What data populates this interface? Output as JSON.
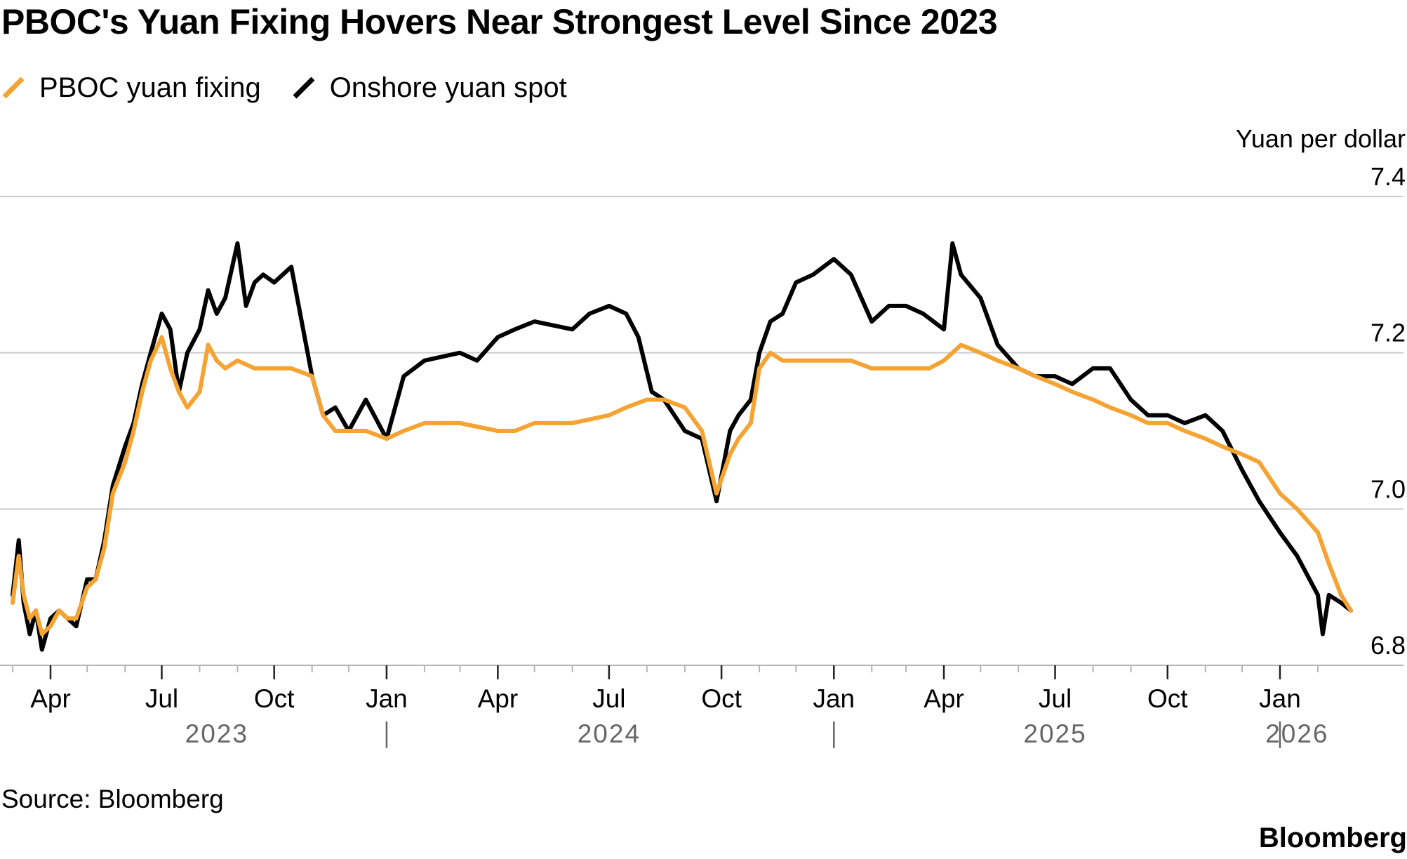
{
  "title": "PBOC's Yuan Fixing Hovers Near Strongest Level Since 2023",
  "source": "Source: Bloomberg",
  "brand": "Bloomberg",
  "colors": {
    "fixing": "#f5a332",
    "spot": "#000000",
    "grid": "#cccccc"
  },
  "chart_data": {
    "type": "line",
    "title": "PBOC's Yuan Fixing Hovers Near Strongest Level Since 2023",
    "ylabel": "Yuan per dollar",
    "ylim": [
      6.8,
      7.4
    ],
    "yticks": [
      "6.8",
      "7.0",
      "7.2",
      "7.4"
    ],
    "y_axis_side": "right",
    "grid": true,
    "legend_position": "top-left",
    "x_range": [
      "2023-03-01",
      "2026-02-28"
    ],
    "month_ticks": [
      {
        "date": "2023-04-01",
        "label": "Apr"
      },
      {
        "date": "2023-07-01",
        "label": "Jul"
      },
      {
        "date": "2023-10-01",
        "label": "Oct"
      },
      {
        "date": "2024-01-01",
        "label": "Jan"
      },
      {
        "date": "2024-04-01",
        "label": "Apr"
      },
      {
        "date": "2024-07-01",
        "label": "Jul"
      },
      {
        "date": "2024-10-01",
        "label": "Oct"
      },
      {
        "date": "2025-01-01",
        "label": "Jan"
      },
      {
        "date": "2025-04-01",
        "label": "Apr"
      },
      {
        "date": "2025-07-01",
        "label": "Jul"
      },
      {
        "date": "2025-10-01",
        "label": "Oct"
      },
      {
        "date": "2026-01-01",
        "label": "Jan"
      }
    ],
    "year_labels": [
      {
        "date": "2023-08-15",
        "label": "2023"
      },
      {
        "date": "2024-07-01",
        "label": "2024"
      },
      {
        "date": "2025-07-01",
        "label": "2025"
      },
      {
        "date": "2026-01-15",
        "label": "2026"
      }
    ],
    "year_separators": [
      "2024-01-01",
      "2025-01-01",
      "2026-01-01"
    ],
    "series": [
      {
        "name": "PBOC yuan fixing",
        "x": [
          "2023-03-01",
          "2023-03-06",
          "2023-03-10",
          "2023-03-15",
          "2023-03-20",
          "2023-03-25",
          "2023-04-01",
          "2023-04-08",
          "2023-04-15",
          "2023-04-22",
          "2023-05-01",
          "2023-05-08",
          "2023-05-15",
          "2023-05-22",
          "2023-06-01",
          "2023-06-08",
          "2023-06-15",
          "2023-06-22",
          "2023-07-01",
          "2023-07-08",
          "2023-07-15",
          "2023-07-22",
          "2023-08-01",
          "2023-08-08",
          "2023-08-15",
          "2023-08-22",
          "2023-09-01",
          "2023-09-15",
          "2023-10-01",
          "2023-10-15",
          "2023-11-01",
          "2023-11-10",
          "2023-11-20",
          "2023-12-01",
          "2023-12-15",
          "2024-01-01",
          "2024-01-15",
          "2024-02-01",
          "2024-03-01",
          "2024-04-01",
          "2024-04-15",
          "2024-05-01",
          "2024-06-01",
          "2024-07-01",
          "2024-07-15",
          "2024-08-01",
          "2024-08-15",
          "2024-09-01",
          "2024-09-15",
          "2024-09-27",
          "2024-10-08",
          "2024-10-15",
          "2024-10-25",
          "2024-11-01",
          "2024-11-10",
          "2024-11-20",
          "2024-12-01",
          "2024-12-15",
          "2025-01-01",
          "2025-01-15",
          "2025-02-01",
          "2025-03-01",
          "2025-03-20",
          "2025-04-01",
          "2025-04-15",
          "2025-05-01",
          "2025-05-15",
          "2025-06-01",
          "2025-06-15",
          "2025-07-01",
          "2025-07-15",
          "2025-08-01",
          "2025-08-15",
          "2025-09-01",
          "2025-09-15",
          "2025-10-01",
          "2025-10-15",
          "2025-11-01",
          "2025-11-15",
          "2025-12-01",
          "2025-12-15",
          "2026-01-01",
          "2026-01-15",
          "2026-02-01",
          "2026-02-10",
          "2026-02-20",
          "2026-02-28"
        ],
        "values": [
          6.88,
          6.94,
          6.89,
          6.86,
          6.87,
          6.84,
          6.85,
          6.87,
          6.86,
          6.86,
          6.9,
          6.91,
          6.95,
          7.02,
          7.06,
          7.1,
          7.15,
          7.19,
          7.22,
          7.18,
          7.15,
          7.13,
          7.15,
          7.21,
          7.19,
          7.18,
          7.19,
          7.18,
          7.18,
          7.18,
          7.17,
          7.12,
          7.1,
          7.1,
          7.1,
          7.09,
          7.1,
          7.11,
          7.11,
          7.1,
          7.1,
          7.11,
          7.11,
          7.12,
          7.13,
          7.14,
          7.14,
          7.13,
          7.1,
          7.02,
          7.07,
          7.09,
          7.11,
          7.18,
          7.2,
          7.19,
          7.19,
          7.19,
          7.19,
          7.19,
          7.18,
          7.18,
          7.18,
          7.19,
          7.21,
          7.2,
          7.19,
          7.18,
          7.17,
          7.16,
          7.15,
          7.14,
          7.13,
          7.12,
          7.11,
          7.11,
          7.1,
          7.09,
          7.08,
          7.07,
          7.06,
          7.02,
          7.0,
          6.97,
          6.93,
          6.89,
          6.87
        ]
      },
      {
        "name": "Onshore yuan spot",
        "x": [
          "2023-03-01",
          "2023-03-06",
          "2023-03-10",
          "2023-03-15",
          "2023-03-20",
          "2023-03-25",
          "2023-04-01",
          "2023-04-08",
          "2023-04-15",
          "2023-04-22",
          "2023-05-01",
          "2023-05-08",
          "2023-05-15",
          "2023-05-22",
          "2023-06-01",
          "2023-06-08",
          "2023-06-15",
          "2023-06-22",
          "2023-07-01",
          "2023-07-08",
          "2023-07-15",
          "2023-07-22",
          "2023-08-01",
          "2023-08-08",
          "2023-08-15",
          "2023-08-22",
          "2023-09-01",
          "2023-09-08",
          "2023-09-15",
          "2023-09-22",
          "2023-10-01",
          "2023-10-15",
          "2023-11-01",
          "2023-11-10",
          "2023-11-20",
          "2023-12-01",
          "2023-12-15",
          "2024-01-01",
          "2024-01-15",
          "2024-02-01",
          "2024-03-01",
          "2024-03-15",
          "2024-04-01",
          "2024-04-15",
          "2024-05-01",
          "2024-06-01",
          "2024-06-15",
          "2024-07-01",
          "2024-07-15",
          "2024-07-25",
          "2024-08-05",
          "2024-08-15",
          "2024-09-01",
          "2024-09-15",
          "2024-09-27",
          "2024-10-08",
          "2024-10-15",
          "2024-10-25",
          "2024-11-01",
          "2024-11-10",
          "2024-11-20",
          "2024-12-01",
          "2024-12-15",
          "2025-01-01",
          "2025-01-15",
          "2025-02-01",
          "2025-02-15",
          "2025-03-01",
          "2025-03-15",
          "2025-04-01",
          "2025-04-08",
          "2025-04-15",
          "2025-05-01",
          "2025-05-15",
          "2025-06-01",
          "2025-06-15",
          "2025-07-01",
          "2025-07-15",
          "2025-08-01",
          "2025-08-15",
          "2025-09-01",
          "2025-09-15",
          "2025-10-01",
          "2025-10-15",
          "2025-11-01",
          "2025-11-15",
          "2025-12-01",
          "2025-12-15",
          "2026-01-01",
          "2026-01-15",
          "2026-02-01",
          "2026-02-05",
          "2026-02-10",
          "2026-02-20",
          "2026-02-28"
        ],
        "values": [
          6.89,
          6.96,
          6.88,
          6.84,
          6.87,
          6.82,
          6.86,
          6.87,
          6.86,
          6.85,
          6.91,
          6.91,
          6.96,
          7.03,
          7.08,
          7.11,
          7.16,
          7.2,
          7.25,
          7.23,
          7.15,
          7.2,
          7.23,
          7.28,
          7.25,
          7.27,
          7.34,
          7.26,
          7.29,
          7.3,
          7.29,
          7.31,
          7.17,
          7.12,
          7.13,
          7.1,
          7.14,
          7.09,
          7.17,
          7.19,
          7.2,
          7.19,
          7.22,
          7.23,
          7.24,
          7.23,
          7.25,
          7.26,
          7.25,
          7.22,
          7.15,
          7.14,
          7.1,
          7.09,
          7.01,
          7.1,
          7.12,
          7.14,
          7.2,
          7.24,
          7.25,
          7.29,
          7.3,
          7.32,
          7.3,
          7.24,
          7.26,
          7.26,
          7.25,
          7.23,
          7.34,
          7.3,
          7.27,
          7.21,
          7.18,
          7.17,
          7.17,
          7.16,
          7.18,
          7.18,
          7.14,
          7.12,
          7.12,
          7.11,
          7.12,
          7.1,
          7.05,
          7.01,
          6.97,
          6.94,
          6.89,
          6.84,
          6.89,
          6.88,
          6.87
        ]
      }
    ]
  }
}
